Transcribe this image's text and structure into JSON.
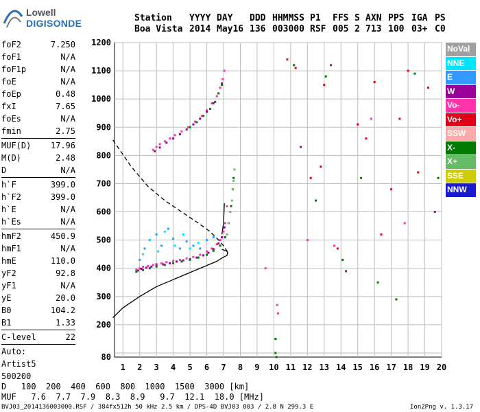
{
  "logo": {
    "line1": "Lowell",
    "line2": "DIGISONDE"
  },
  "header": {
    "labels": [
      "Station",
      "YYYY",
      "DAY",
      "DDD",
      "HHMMSS",
      "P1",
      "FFS",
      "S",
      "AXN",
      "PPS",
      "IGA",
      "PS"
    ],
    "station": "Boa Vista",
    "year": "2014",
    "day": "May16",
    "ddd": "136",
    "hhmmss": "003000",
    "p1": "RSF",
    "ffs": "005",
    "s": "2",
    "axn": "713",
    "pps": "100",
    "iga": "03+",
    "ps": "C0"
  },
  "params": [
    {
      "name": "foF2",
      "value": "7.250"
    },
    {
      "name": "foF1",
      "value": "N/A"
    },
    {
      "name": "foF1p",
      "value": "N/A"
    },
    {
      "name": "foE",
      "value": "N/A"
    },
    {
      "name": "foEp",
      "value": "0.48"
    },
    {
      "name": "fxI",
      "value": "7.65"
    },
    {
      "name": "foEs",
      "value": "N/A"
    },
    {
      "name": "fmin",
      "value": "2.75"
    },
    {
      "sep": true
    },
    {
      "name": "MUF(D)",
      "value": "17.96"
    },
    {
      "name": "M(D)",
      "value": "2.48"
    },
    {
      "name": "D",
      "value": "N/A"
    },
    {
      "sep": true
    },
    {
      "name": "h`F",
      "value": "399.0"
    },
    {
      "name": "h`F2",
      "value": "399.0"
    },
    {
      "name": "h`E",
      "value": "N/A"
    },
    {
      "name": "h`Es",
      "value": "N/A"
    },
    {
      "sep": true
    },
    {
      "name": "hmF2",
      "value": "450.9"
    },
    {
      "name": "hmF1",
      "value": "N/A"
    },
    {
      "name": "hmE",
      "value": "110.0"
    },
    {
      "name": "yF2",
      "value": "92.8"
    },
    {
      "name": "yF1",
      "value": "N/A"
    },
    {
      "name": "yE",
      "value": "20.0"
    },
    {
      "name": "B0",
      "value": "104.2"
    },
    {
      "name": "B1",
      "value": "1.33"
    },
    {
      "sep": true
    },
    {
      "name": "C-level",
      "value": "22"
    },
    {
      "sep": true
    },
    {
      "text": "Auto:"
    },
    {
      "text": "Artist5"
    },
    {
      "text": "500200"
    }
  ],
  "legend": [
    {
      "label": "NoVal",
      "color": "#a0a0a0"
    },
    {
      "label": "NNE",
      "color": "#00e5ff"
    },
    {
      "label": "E",
      "color": "#3399ff"
    },
    {
      "label": "W",
      "color": "#990099"
    },
    {
      "label": "Vo-",
      "color": "#ff33aa"
    },
    {
      "label": "Vo+",
      "color": "#e0001a"
    },
    {
      "label": "SSW",
      "color": "#ffaaaa"
    },
    {
      "label": "X-",
      "color": "#007a00"
    },
    {
      "label": "X+",
      "color": "#66bb66"
    },
    {
      "label": "SSE",
      "color": "#cccc00"
    },
    {
      "label": "NNW",
      "color": "#1a1acc"
    }
  ],
  "footer": {
    "d_label": "D",
    "d_values": [
      "100",
      "200",
      "400",
      "600",
      "800",
      "1000",
      "1500",
      "3000"
    ],
    "d_unit": "[km]",
    "muf_label": "MUF",
    "muf_values": [
      "7.6",
      "7.7",
      "7.9",
      "8.3",
      "8.9",
      "9.7",
      "12.1",
      "18.0"
    ],
    "muf_unit": "[MHz]",
    "file_info": "BVJ03_2014136003000.RSF / 384fx512h 50 kHz 2.5 km / DPS-4D BVJ03 003 / 2.8 N 299.3 E",
    "version": "Ion2Png v. 1.3.17"
  },
  "chart_data": {
    "type": "scatter",
    "title": "",
    "xlabel": "",
    "ylabel": "",
    "xlim": [
      0.5,
      20.0
    ],
    "ylim": [
      80,
      1200
    ],
    "xticks": [
      1,
      2,
      3,
      4,
      5,
      6,
      7,
      8,
      9,
      10,
      11,
      12,
      13,
      14,
      15,
      16,
      17,
      18,
      19,
      20
    ],
    "yticks": [
      80,
      100,
      200,
      300,
      400,
      500,
      600,
      700,
      800,
      900,
      1000,
      1100,
      1200
    ],
    "xticklabels": [
      "1",
      "2",
      "3",
      "4",
      "5",
      "6",
      "7",
      "8",
      "9",
      "10",
      "11",
      "12",
      "13",
      "14",
      "15",
      "16",
      "17",
      "18",
      "19",
      "20"
    ],
    "yticklabels": [
      "80",
      "",
      "200",
      "300",
      "400",
      "500",
      "600",
      "700",
      "800",
      "900",
      "1000",
      "1100",
      "1200"
    ],
    "grid": true,
    "series": [
      {
        "color": "#ff33aa",
        "x": [
          1.8,
          2.0,
          2.2,
          2.5,
          2.8,
          3.0,
          3.3,
          3.6,
          4.0,
          4.4,
          4.8,
          5.2,
          5.6,
          6.0,
          6.3,
          6.6,
          6.8,
          7.0,
          7.1,
          7.2
        ],
        "y": [
          395,
          400,
          405,
          408,
          412,
          415,
          418,
          422,
          426,
          430,
          435,
          440,
          448,
          460,
          470,
          485,
          500,
          530,
          560,
          620
        ]
      },
      {
        "color": "#990099",
        "x": [
          1.9,
          2.1,
          2.4,
          2.7,
          3.0,
          3.4,
          3.8,
          4.2,
          4.6,
          5.0,
          5.4,
          5.8,
          6.1,
          6.4,
          6.7,
          6.9,
          7.05
        ],
        "y": [
          392,
          398,
          402,
          406,
          410,
          414,
          418,
          424,
          428,
          432,
          438,
          446,
          455,
          468,
          488,
          510,
          545
        ]
      },
      {
        "color": "#007a00",
        "x": [
          1.8,
          2.2,
          2.6,
          3.0,
          3.5,
          4.0,
          4.5,
          5.0,
          5.5,
          6.0,
          6.4,
          6.8,
          7.1,
          7.3,
          7.45,
          7.55,
          7.6
        ],
        "y": [
          388,
          394,
          400,
          406,
          412,
          418,
          424,
          430,
          438,
          448,
          462,
          480,
          510,
          560,
          620,
          680,
          720
        ]
      },
      {
        "color": "#66bb66",
        "x": [
          7.2,
          7.3,
          7.4,
          7.5,
          7.55,
          7.6,
          7.65
        ],
        "y": [
          520,
          560,
          600,
          640,
          680,
          710,
          750
        ]
      },
      {
        "color": "#3399ff",
        "x": [
          2.0,
          2.3,
          2.6,
          3.0,
          3.3,
          3.7,
          4.0,
          4.4,
          4.8,
          5.2,
          5.6,
          6.0,
          6.4
        ],
        "y": [
          430,
          470,
          500,
          520,
          480,
          540,
          505,
          470,
          495,
          480,
          470,
          500,
          510
        ]
      },
      {
        "color": "#00e5ff",
        "x": [
          2.2,
          2.6,
          3.1,
          3.5,
          4.1,
          4.6,
          5.0,
          5.5
        ],
        "y": [
          450,
          500,
          460,
          530,
          480,
          520,
          470,
          490
        ]
      },
      {
        "color": "#ff33aa",
        "x": [
          2.8,
          3.0,
          3.2,
          3.5,
          3.8,
          4.1,
          4.5,
          4.9,
          5.3,
          5.7,
          6.0,
          6.3,
          6.6,
          6.8,
          6.95,
          7.05
        ],
        "y": [
          820,
          830,
          840,
          850,
          860,
          872,
          885,
          900,
          920,
          940,
          960,
          985,
          1010,
          1040,
          1070,
          1100
        ]
      },
      {
        "color": "#990099",
        "x": [
          2.9,
          3.2,
          3.6,
          4.0,
          4.4,
          4.8,
          5.2,
          5.6,
          6.0,
          6.4,
          6.7,
          6.9
        ],
        "y": [
          815,
          828,
          845,
          860,
          875,
          892,
          910,
          930,
          955,
          985,
          1020,
          1055
        ]
      },
      {
        "color": "#007a00",
        "x": [
          5.0,
          5.4,
          5.8,
          6.2,
          6.5,
          6.7,
          6.9
        ],
        "y": [
          900,
          918,
          940,
          965,
          990,
          1020,
          1050
        ]
      },
      {
        "color": "#e0001a",
        "x": [
          10.8,
          11.3,
          11.6,
          12.2,
          12.8,
          13.0,
          13.4,
          13.8,
          14.3,
          15.0,
          15.5,
          16.0,
          16.4,
          17.0,
          17.5,
          18.0,
          18.6,
          19.2,
          19.6
        ],
        "y": [
          1140,
          1110,
          830,
          720,
          760,
          1050,
          1120,
          470,
          390,
          910,
          860,
          1060,
          520,
          680,
          930,
          1100,
          740,
          1040,
          600
        ]
      },
      {
        "color": "#007a00",
        "x": [
          11.2,
          12.5,
          13.1,
          14.1,
          15.2,
          16.2,
          17.3,
          18.4,
          19.8,
          10.1,
          10.1,
          10.15
        ],
        "y": [
          1120,
          640,
          1080,
          430,
          720,
          350,
          290,
          1090,
          720,
          150,
          100,
          80
        ]
      },
      {
        "color": "#ff33aa",
        "x": [
          10.2,
          10.25,
          12.0,
          13.6,
          15.8,
          17.8,
          9.5
        ],
        "y": [
          270,
          240,
          500,
          480,
          930,
          560,
          400
        ]
      }
    ],
    "curves": [
      {
        "name": "",
        "style": "solid",
        "color": "#000000",
        "x": [
          0.4,
          1.0,
          2.0,
          3.0,
          4.0,
          5.0,
          6.0,
          6.6,
          7.0,
          7.2,
          7.25,
          7.2,
          7.1,
          7.0,
          6.9
        ],
        "y": [
          225,
          260,
          300,
          335,
          360,
          385,
          410,
          425,
          440,
          445,
          455,
          460,
          463,
          465,
          467
        ]
      },
      {
        "name": "",
        "style": "dashed",
        "color": "#000000",
        "x": [
          0.4,
          1.5,
          2.5,
          3.5,
          4.5,
          5.5,
          6.2,
          6.7,
          7.0,
          7.2,
          7.25
        ],
        "y": [
          855,
          760,
          690,
          640,
          600,
          560,
          530,
          500,
          480,
          462,
          455
        ]
      },
      {
        "name": "",
        "style": "solid",
        "color": "#000000",
        "x": [
          6.9,
          6.95,
          7.0,
          7.02,
          7.05
        ],
        "y": [
          520,
          540,
          560,
          590,
          630
        ]
      }
    ]
  }
}
